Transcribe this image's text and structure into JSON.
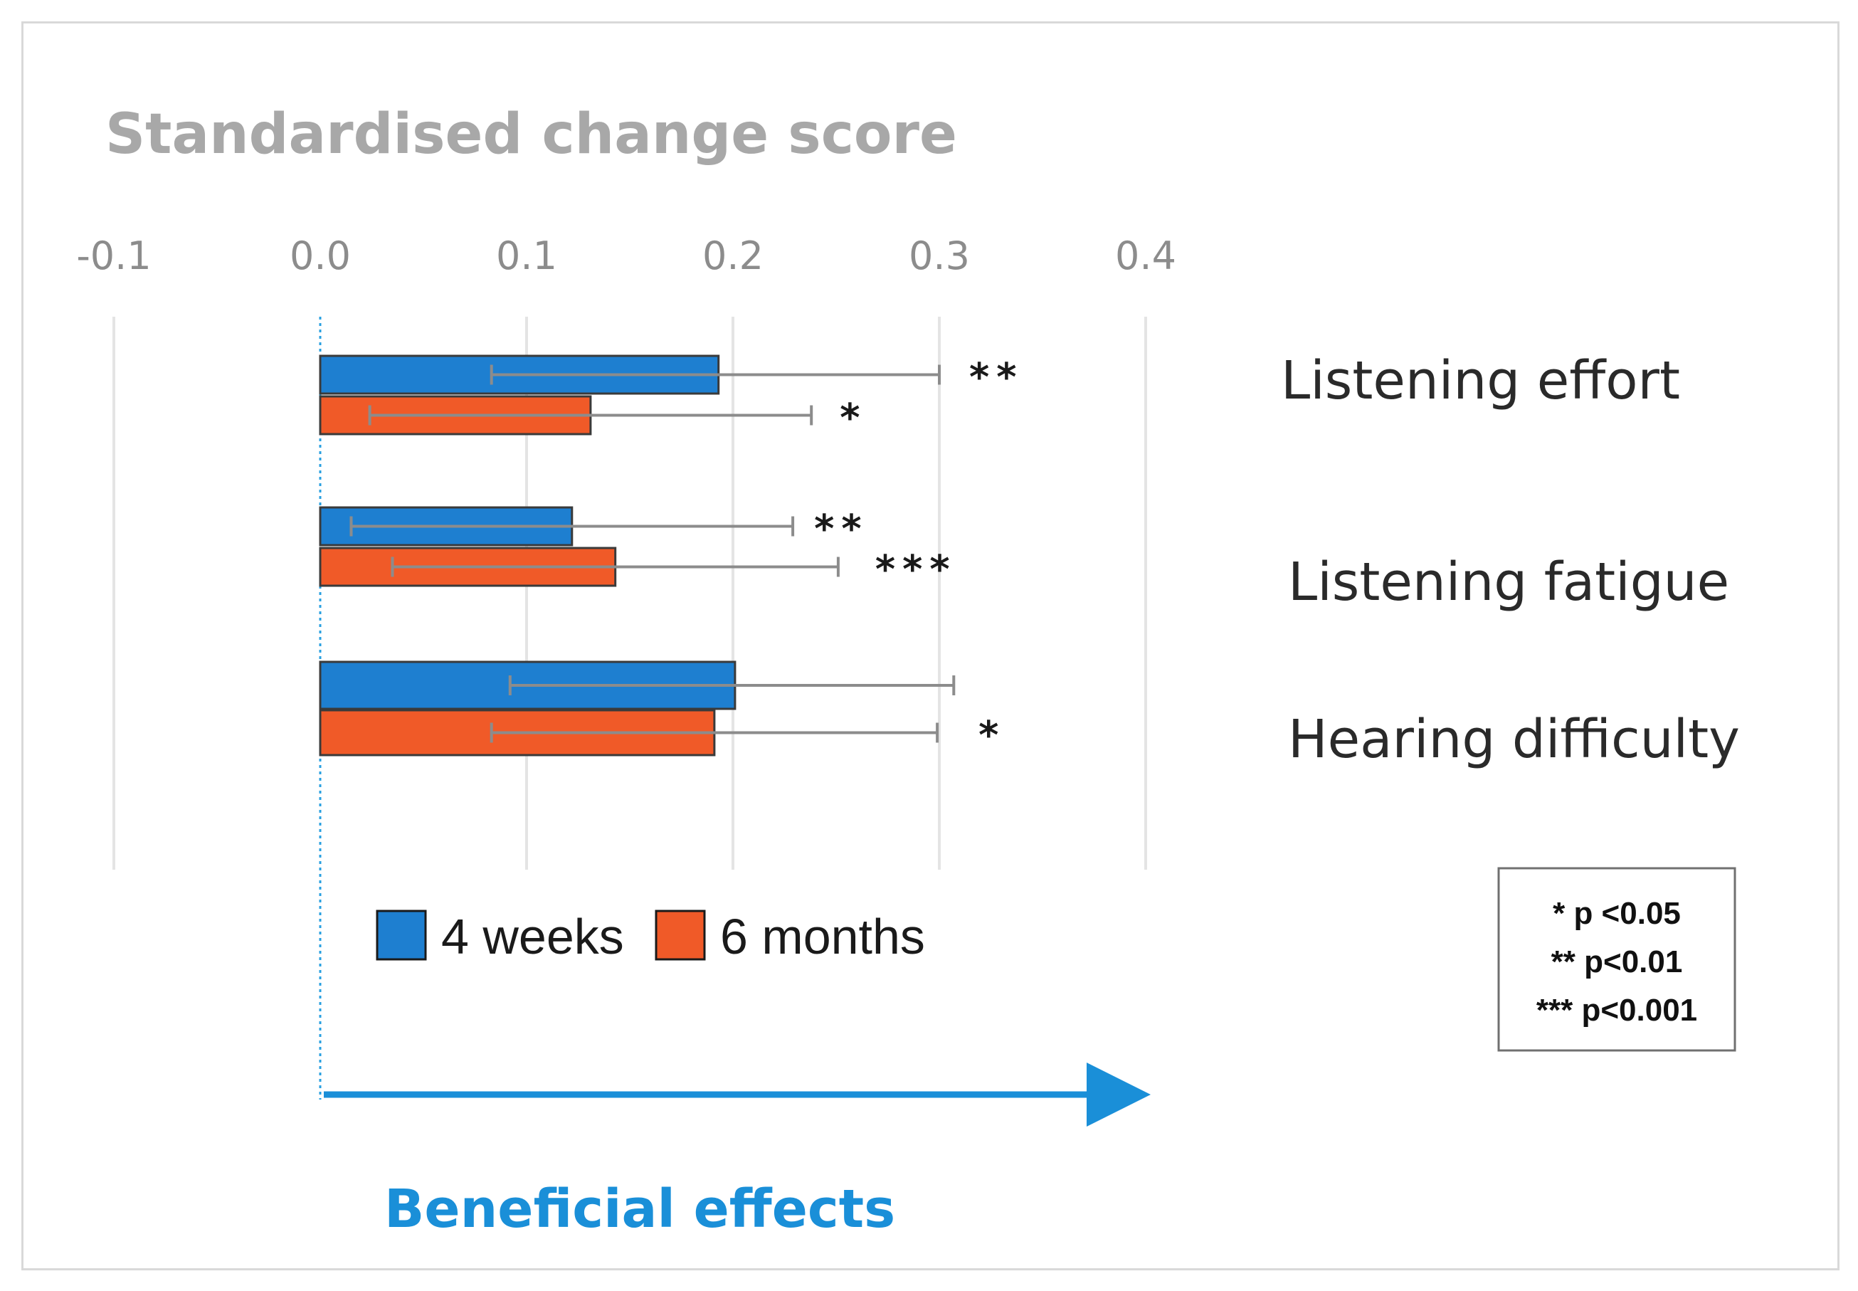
{
  "chart_data": {
    "type": "bar",
    "orientation": "horizontal",
    "title": "Standardised change score",
    "xlim": [
      -0.1,
      0.4
    ],
    "ticks": [
      -0.1,
      0.0,
      0.1,
      0.2,
      0.3,
      0.4
    ],
    "tick_labels": [
      "-0.1",
      "0.0",
      "0.1",
      "0.2",
      "0.3",
      "0.4"
    ],
    "grid": true,
    "categories": [
      "Listening effort",
      "Listening fatigue",
      "Hearing difficulty"
    ],
    "series": [
      {
        "name": "4 weeks",
        "color": "#1e7fd0",
        "values": [
          0.193,
          0.122,
          0.201
        ],
        "ci_low": [
          0.083,
          0.015,
          0.092
        ],
        "ci_high": [
          0.3,
          0.229,
          0.307
        ],
        "significance": [
          "**",
          "**",
          ""
        ]
      },
      {
        "name": "6 months",
        "color": "#f05a28",
        "values": [
          0.131,
          0.143,
          0.191
        ],
        "ci_low": [
          0.024,
          0.035,
          0.083
        ],
        "ci_high": [
          0.238,
          0.251,
          0.299
        ],
        "significance": [
          "*",
          "***",
          "*"
        ]
      }
    ],
    "legend": {
      "items": [
        "4 weeks",
        "6 months"
      ],
      "position": "bottom"
    },
    "significance_key": [
      "* p <0.05",
      "** p<0.01",
      "*** p<0.001"
    ],
    "annotation": {
      "text": "Beneficial effects",
      "color": "#1a8fd8"
    }
  }
}
